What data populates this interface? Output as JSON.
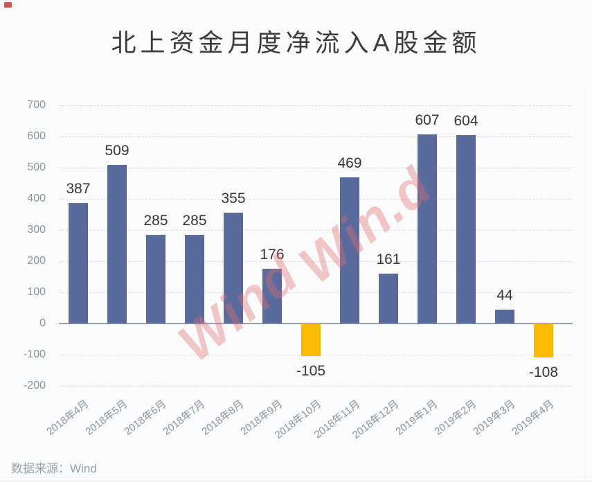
{
  "page": {
    "source_label": "数据来源：Wind",
    "watermarks": [
      "Wind",
      "Win.d"
    ]
  },
  "chart_data": {
    "type": "bar",
    "title": "北上资金月度净流入A股金额",
    "categories": [
      "2018年4月",
      "2018年5月",
      "2018年6月",
      "2018年7月",
      "2018年8月",
      "2018年9月",
      "2018年10月",
      "2018年11月",
      "2018年12月",
      "2019年1月",
      "2019年2月",
      "2019年3月",
      "2019年4月"
    ],
    "values": [
      387,
      509,
      285,
      285,
      355,
      176,
      -105,
      469,
      161,
      607,
      604,
      44,
      -108
    ],
    "yticks": [
      700,
      600,
      500,
      400,
      300,
      200,
      100,
      0,
      -100,
      -200
    ],
    "ylim": [
      -200,
      700
    ],
    "grid": "dashed-horizontal",
    "legend": "none",
    "positive_color": "#5a6a9d",
    "negative_color": "#fbbd00",
    "watermark_color": "#dd6e6e",
    "source": "数据来源：Wind"
  }
}
